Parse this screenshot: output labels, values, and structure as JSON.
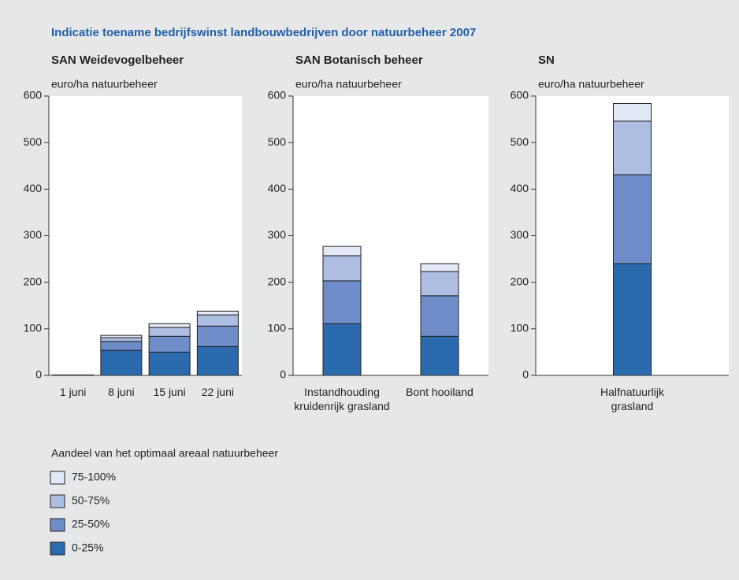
{
  "title": "Indicatie toename bedrijfswinst landbouwbedrijven door natuurbeheer 2007",
  "legend": {
    "title": "Aandeel van het optimaal areaal natuurbeheer",
    "items": [
      {
        "name": "0-25%",
        "color": "#2b6aad"
      },
      {
        "name": "25-50%",
        "color": "#6f8dc9"
      },
      {
        "name": "50-75%",
        "color": "#aebde2"
      },
      {
        "name": "75-100%",
        "color": "#e3e9f6"
      }
    ]
  },
  "chart_data": [
    {
      "type": "bar",
      "stacked": true,
      "title": "SAN Weidevogelbeheer",
      "ylabel": "euro/ha natuurbeheer",
      "categories": [
        "1 juni",
        "8 juni",
        "15 juni",
        "22 juni"
      ],
      "series": [
        {
          "values": [
            1,
            54,
            50,
            62
          ]
        },
        {
          "values": [
            0,
            19,
            34,
            44
          ]
        },
        {
          "values": [
            0,
            8,
            19,
            24
          ]
        },
        {
          "values": [
            0,
            5,
            8,
            8
          ]
        }
      ],
      "ylim": [
        0,
        600
      ],
      "yticks": [
        0,
        100,
        200,
        300,
        400,
        500,
        600
      ]
    },
    {
      "type": "bar",
      "stacked": true,
      "title": "SAN Botanisch beheer",
      "ylabel": "euro/ha natuurbeheer",
      "categories": [
        "Instandhouding kruidenrijk grasland",
        "Bont hooiland"
      ],
      "series": [
        {
          "values": [
            111,
            84
          ]
        },
        {
          "values": [
            92,
            87
          ]
        },
        {
          "values": [
            54,
            52
          ]
        },
        {
          "values": [
            20,
            17
          ]
        }
      ],
      "ylim": [
        0,
        600
      ],
      "yticks": [
        0,
        100,
        200,
        300,
        400,
        500,
        600
      ]
    },
    {
      "type": "bar",
      "stacked": true,
      "title": "SN",
      "ylabel": "euro/ha natuurbeheer",
      "categories": [
        "Halfnatuurlijk grasland"
      ],
      "series": [
        {
          "values": [
            240
          ]
        },
        {
          "values": [
            191
          ]
        },
        {
          "values": [
            115
          ]
        },
        {
          "values": [
            38
          ]
        }
      ],
      "ylim": [
        0,
        600
      ],
      "yticks": [
        0,
        100,
        200,
        300,
        400,
        500,
        600
      ]
    }
  ]
}
